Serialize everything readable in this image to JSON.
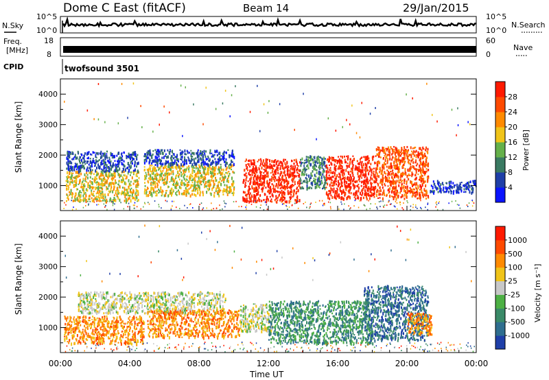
{
  "header": {
    "title": "Dome C East (fitACF)",
    "beam": "Beam 14",
    "date": "29/Jan/2015"
  },
  "aux_panels": {
    "nsky_label": "N.Sky",
    "nsearch_label": "N.Search",
    "nsky_ticks": [
      "10^5",
      "10^0"
    ],
    "freq_label_1": "Freq.",
    "freq_label_2": "[MHz]",
    "freq_ticks": [
      "18",
      "8"
    ],
    "nave_label": "Nave",
    "nave_ticks": [
      "60",
      "0"
    ],
    "cpid_label": "CPID",
    "cpid_value": "twofsound 3501"
  },
  "chart_data": [
    {
      "type": "heatmap",
      "title": "",
      "xlabel": "",
      "ylabel": "Slant Range [km]",
      "x_range_hours": [
        0,
        24
      ],
      "ylim": [
        180,
        4500
      ],
      "y_ticks": [
        1000,
        2000,
        3000,
        4000
      ],
      "colorbar": {
        "label": "Power [dB]",
        "ticks": [
          "4",
          "8",
          "12",
          "16",
          "20",
          "24",
          "28"
        ],
        "colors": [
          "#0a14ff",
          "#1f3fa8",
          "#3a7a62",
          "#65b04a",
          "#f0c419",
          "#ff8a00",
          "#ff4a00",
          "#ff1a00"
        ],
        "range": [
          0,
          30
        ]
      },
      "bands": [
        {
          "x0": 0.3,
          "x1": 4.5,
          "y0": 500,
          "y1": 1500,
          "level": 4
        },
        {
          "x0": 0.3,
          "x1": 4.5,
          "y0": 1500,
          "y1": 2150,
          "level": 1
        },
        {
          "x0": 4.8,
          "x1": 10.0,
          "y0": 700,
          "y1": 1700,
          "level": 4
        },
        {
          "x0": 4.8,
          "x1": 10.0,
          "y0": 1700,
          "y1": 2200,
          "level": 1
        },
        {
          "x0": 10.5,
          "x1": 13.8,
          "y0": 500,
          "y1": 1900,
          "level": 7
        },
        {
          "x0": 13.8,
          "x1": 15.3,
          "y0": 900,
          "y1": 2000,
          "level": 2
        },
        {
          "x0": 15.3,
          "x1": 18.2,
          "y0": 600,
          "y1": 2000,
          "level": 7
        },
        {
          "x0": 18.2,
          "x1": 21.2,
          "y0": 600,
          "y1": 2300,
          "level": 6
        },
        {
          "x0": 21.3,
          "x1": 24.0,
          "y0": 800,
          "y1": 1200,
          "level": 1
        }
      ]
    },
    {
      "type": "heatmap",
      "title": "",
      "xlabel": "Time UT",
      "ylabel": "Slant Range [km]",
      "x_range_hours": [
        0,
        24
      ],
      "ylim": [
        180,
        4500
      ],
      "y_ticks": [
        1000,
        2000,
        3000,
        4000
      ],
      "x_ticks": [
        "00:00",
        "04:00",
        "08:00",
        "12:00",
        "16:00",
        "20:00",
        "00:00"
      ],
      "colorbar": {
        "label": "Velocity [m s⁻¹]",
        "ticks": [
          "1000",
          "500",
          "100",
          "25",
          "-25",
          "-100",
          "-500",
          "-1000"
        ],
        "colors": [
          "#1f3fa8",
          "#2f6e8f",
          "#3a8a68",
          "#4db044",
          "#c8c8c8",
          "#f0c419",
          "#ff8a00",
          "#ff4a00",
          "#ff1a00"
        ],
        "range": [
          -1200,
          1200
        ]
      },
      "bands": [
        {
          "x0": 0.2,
          "x1": 4.8,
          "y0": 500,
          "y1": 1400,
          "level": 6
        },
        {
          "x0": 1.0,
          "x1": 9.5,
          "y0": 1500,
          "y1": 2200,
          "level": 4
        },
        {
          "x0": 5.0,
          "x1": 10.3,
          "y0": 700,
          "y1": 1600,
          "level": 6
        },
        {
          "x0": 10.3,
          "x1": 12.2,
          "y0": 900,
          "y1": 1800,
          "level": 4
        },
        {
          "x0": 12.0,
          "x1": 18.0,
          "y0": 500,
          "y1": 1900,
          "level": 2
        },
        {
          "x0": 17.5,
          "x1": 21.2,
          "y0": 600,
          "y1": 2400,
          "level": 1
        },
        {
          "x0": 20.0,
          "x1": 21.4,
          "y0": 800,
          "y1": 1500,
          "level": 6
        }
      ]
    }
  ]
}
